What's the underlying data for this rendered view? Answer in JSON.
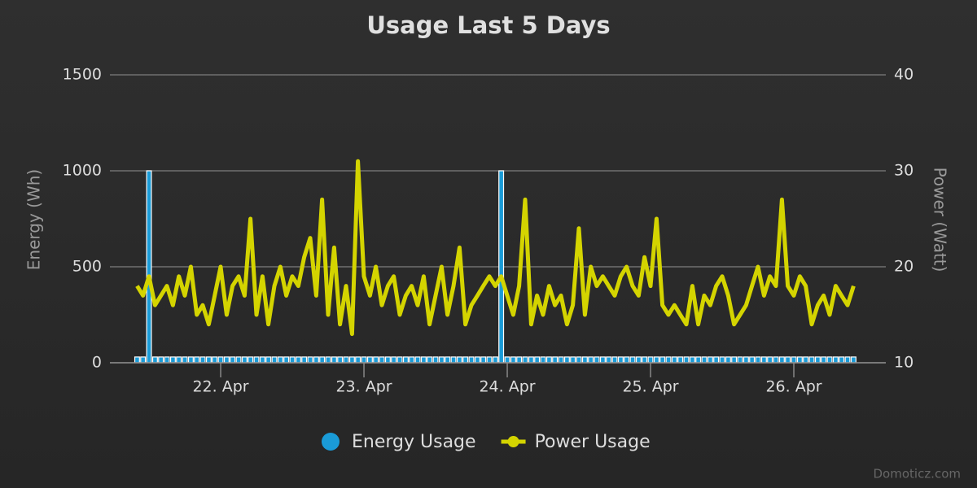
{
  "chart_data": {
    "type": "bar-line",
    "title": "Usage Last 5 Days",
    "y_label": "Energy (Wh)",
    "y2_label": "Power (Watt)",
    "credits": "Domoticz.com",
    "x": [
      21.417,
      21.458,
      21.5,
      21.542,
      21.583,
      21.625,
      21.667,
      21.708,
      21.75,
      21.792,
      21.833,
      21.875,
      21.917,
      21.958,
      22,
      22.042,
      22.083,
      22.125,
      22.167,
      22.208,
      22.25,
      22.292,
      22.333,
      22.375,
      22.417,
      22.458,
      22.5,
      22.542,
      22.583,
      22.625,
      22.667,
      22.708,
      22.75,
      22.792,
      22.833,
      22.875,
      22.917,
      22.958,
      23,
      23.042,
      23.083,
      23.125,
      23.167,
      23.208,
      23.25,
      23.292,
      23.333,
      23.375,
      23.417,
      23.458,
      23.5,
      23.542,
      23.583,
      23.625,
      23.667,
      23.708,
      23.75,
      23.792,
      23.833,
      23.875,
      23.917,
      23.958,
      24,
      24.042,
      24.083,
      24.125,
      24.167,
      24.208,
      24.25,
      24.292,
      24.333,
      24.375,
      24.417,
      24.458,
      24.5,
      24.542,
      24.583,
      24.625,
      24.667,
      24.708,
      24.75,
      24.792,
      24.833,
      24.875,
      24.917,
      24.958,
      25,
      25.042,
      25.083,
      25.125,
      25.167,
      25.208,
      25.25,
      25.292,
      25.333,
      25.375,
      25.417,
      25.458,
      25.5,
      25.542,
      25.583,
      25.625,
      25.667,
      25.708,
      25.75,
      25.792,
      25.833,
      25.875,
      25.917,
      25.958,
      26,
      26.042,
      26.083,
      26.125,
      26.167,
      26.208,
      26.25,
      26.292,
      26.333,
      26.375,
      26.417
    ],
    "series": [
      {
        "name": "Energy Usage",
        "color": "#1a9bd7",
        "kind": "bar",
        "values": [
          30,
          30,
          1000,
          30,
          30,
          30,
          30,
          30,
          30,
          30,
          30,
          30,
          30,
          30,
          30,
          30,
          30,
          30,
          30,
          30,
          30,
          30,
          30,
          30,
          30,
          30,
          30,
          30,
          30,
          30,
          30,
          30,
          30,
          30,
          30,
          30,
          30,
          30,
          30,
          30,
          30,
          30,
          30,
          30,
          30,
          30,
          30,
          30,
          30,
          30,
          30,
          30,
          30,
          30,
          30,
          30,
          30,
          30,
          30,
          30,
          30,
          1000,
          30,
          30,
          30,
          30,
          30,
          30,
          30,
          30,
          30,
          30,
          30,
          30,
          30,
          30,
          30,
          30,
          30,
          30,
          30,
          30,
          30,
          30,
          30,
          30,
          30,
          30,
          30,
          30,
          30,
          30,
          30,
          30,
          30,
          30,
          30,
          30,
          30,
          30,
          30,
          30,
          30,
          30,
          30,
          30,
          30,
          30,
          30,
          30,
          30,
          30,
          30,
          30,
          30,
          30,
          30,
          30,
          30,
          30,
          30
        ]
      },
      {
        "name": "Power Usage",
        "color": "#d4d400",
        "kind": "line",
        "axis": "y2",
        "values": [
          18,
          17,
          19,
          16,
          17,
          18,
          16,
          19,
          17,
          20,
          15,
          16,
          14,
          17,
          20,
          15,
          18,
          19,
          17,
          25,
          15,
          19,
          14,
          18,
          20,
          17,
          19,
          18,
          21,
          23,
          17,
          27,
          15,
          22,
          14,
          18,
          13,
          31,
          19,
          17,
          20,
          16,
          18,
          19,
          15,
          17,
          18,
          16,
          19,
          14,
          17,
          20,
          15,
          18,
          22,
          14,
          16,
          17,
          18,
          19,
          18,
          19,
          17,
          15,
          18,
          27,
          14,
          17,
          15,
          18,
          16,
          17,
          14,
          16,
          24,
          15,
          20,
          18,
          19,
          18,
          17,
          19,
          20,
          18,
          17,
          21,
          18,
          25,
          16,
          15,
          16,
          15,
          14,
          18,
          14,
          17,
          16,
          18,
          19,
          17,
          14,
          15,
          16,
          18,
          20,
          17,
          19,
          18,
          27,
          18,
          17,
          19,
          18,
          14,
          16,
          17,
          15,
          18,
          17,
          16,
          18
        ]
      }
    ],
    "xlim": [
      21.227,
      26.642
    ],
    "xticks": [
      {
        "value": 22,
        "label": "22. Apr"
      },
      {
        "value": 23,
        "label": "23. Apr"
      },
      {
        "value": 24,
        "label": "24. Apr"
      },
      {
        "value": 25,
        "label": "25. Apr"
      },
      {
        "value": 26,
        "label": "26. Apr"
      }
    ],
    "ylim": [
      0,
      1500
    ],
    "yticks": [
      0,
      500,
      1000,
      1500
    ],
    "y2lim": [
      10,
      40
    ],
    "y2ticks": [
      10,
      20,
      30,
      40
    ],
    "grid": true
  }
}
